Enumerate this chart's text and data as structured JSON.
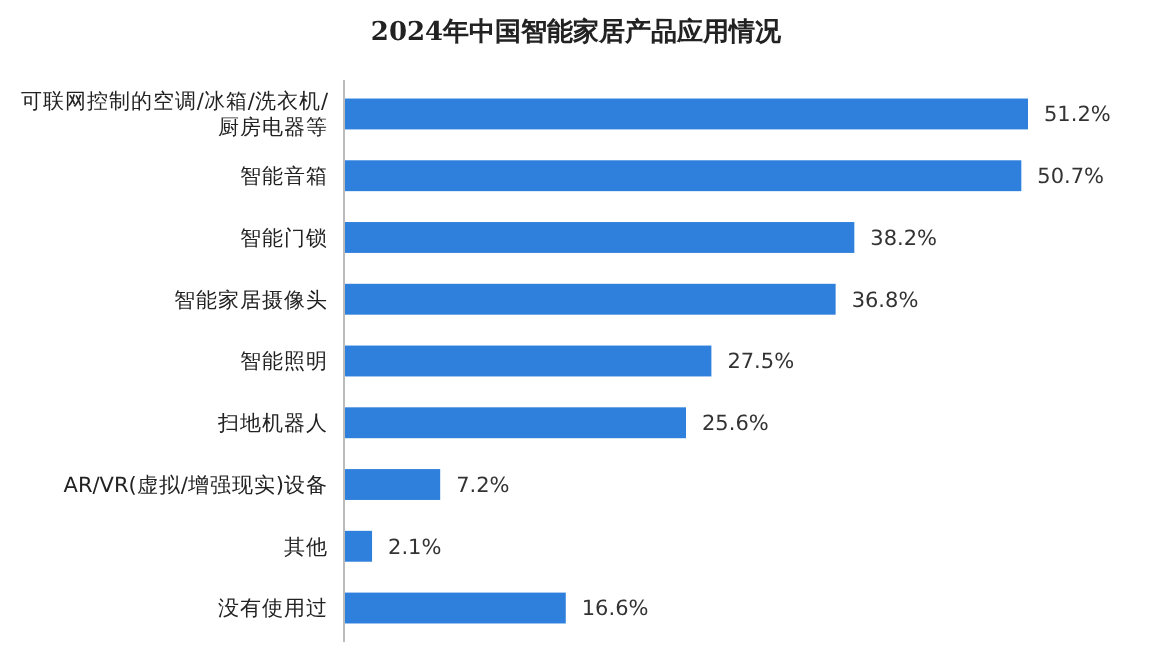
{
  "chart_data": {
    "type": "bar",
    "orientation": "horizontal",
    "title": "2024年中国智能家居产品应用情况",
    "categories": [
      "可联网控制的空调/冰箱/洗衣机/厨房电器等",
      "智能音箱",
      "智能门锁",
      "智能家居摄像头",
      "智能照明",
      "扫地机器人",
      "AR/VR(虚拟/增强现实)设备",
      "其他",
      "没有使用过"
    ],
    "values": [
      51.2,
      50.7,
      38.2,
      36.8,
      27.5,
      25.6,
      7.2,
      2.1,
      16.6
    ],
    "value_labels": [
      "51.2%",
      "50.7%",
      "38.2%",
      "36.8%",
      "27.5%",
      "25.6%",
      "7.2%",
      "2.1%",
      "16.6%"
    ],
    "color": "#2f7fdc"
  }
}
